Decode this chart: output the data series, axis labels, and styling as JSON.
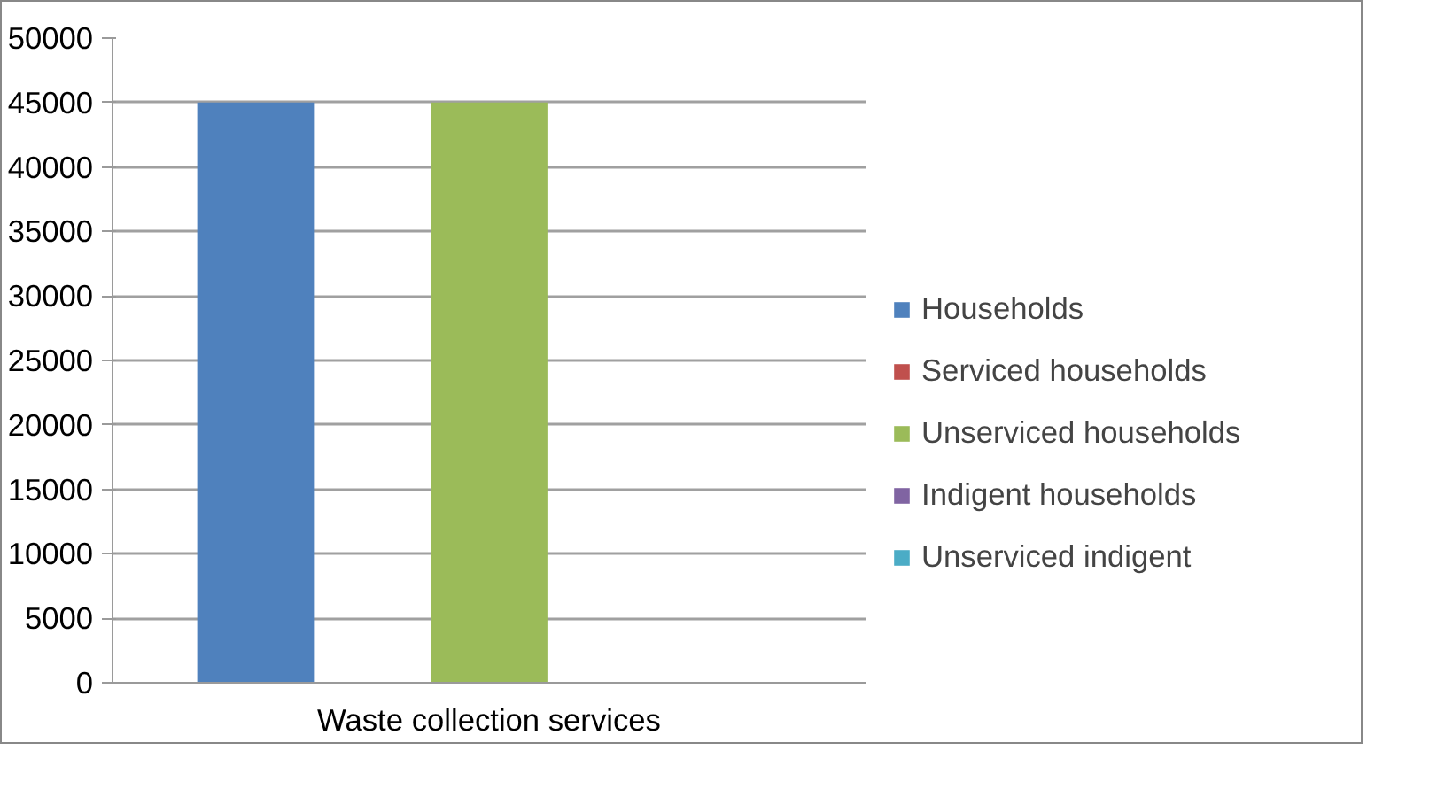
{
  "chart_data": {
    "type": "bar",
    "categories": [
      "Waste collection services"
    ],
    "series": [
      {
        "name": "Households",
        "color": "#4f81bd",
        "values": [
          45000
        ]
      },
      {
        "name": "Serviced households",
        "color": "#c0504d",
        "values": [
          0
        ]
      },
      {
        "name": "Unserviced households",
        "color": "#9bbb59",
        "values": [
          45000
        ]
      },
      {
        "name": "Indigent households",
        "color": "#8064a2",
        "values": [
          0
        ]
      },
      {
        "name": "Unserviced indigent",
        "color": "#4bacc6",
        "values": [
          0
        ]
      }
    ],
    "ylim": [
      0,
      50000
    ],
    "yticks": [
      0,
      5000,
      10000,
      15000,
      20000,
      25000,
      30000,
      35000,
      40000,
      45000,
      50000
    ],
    "grid": "y",
    "legend": "right"
  }
}
